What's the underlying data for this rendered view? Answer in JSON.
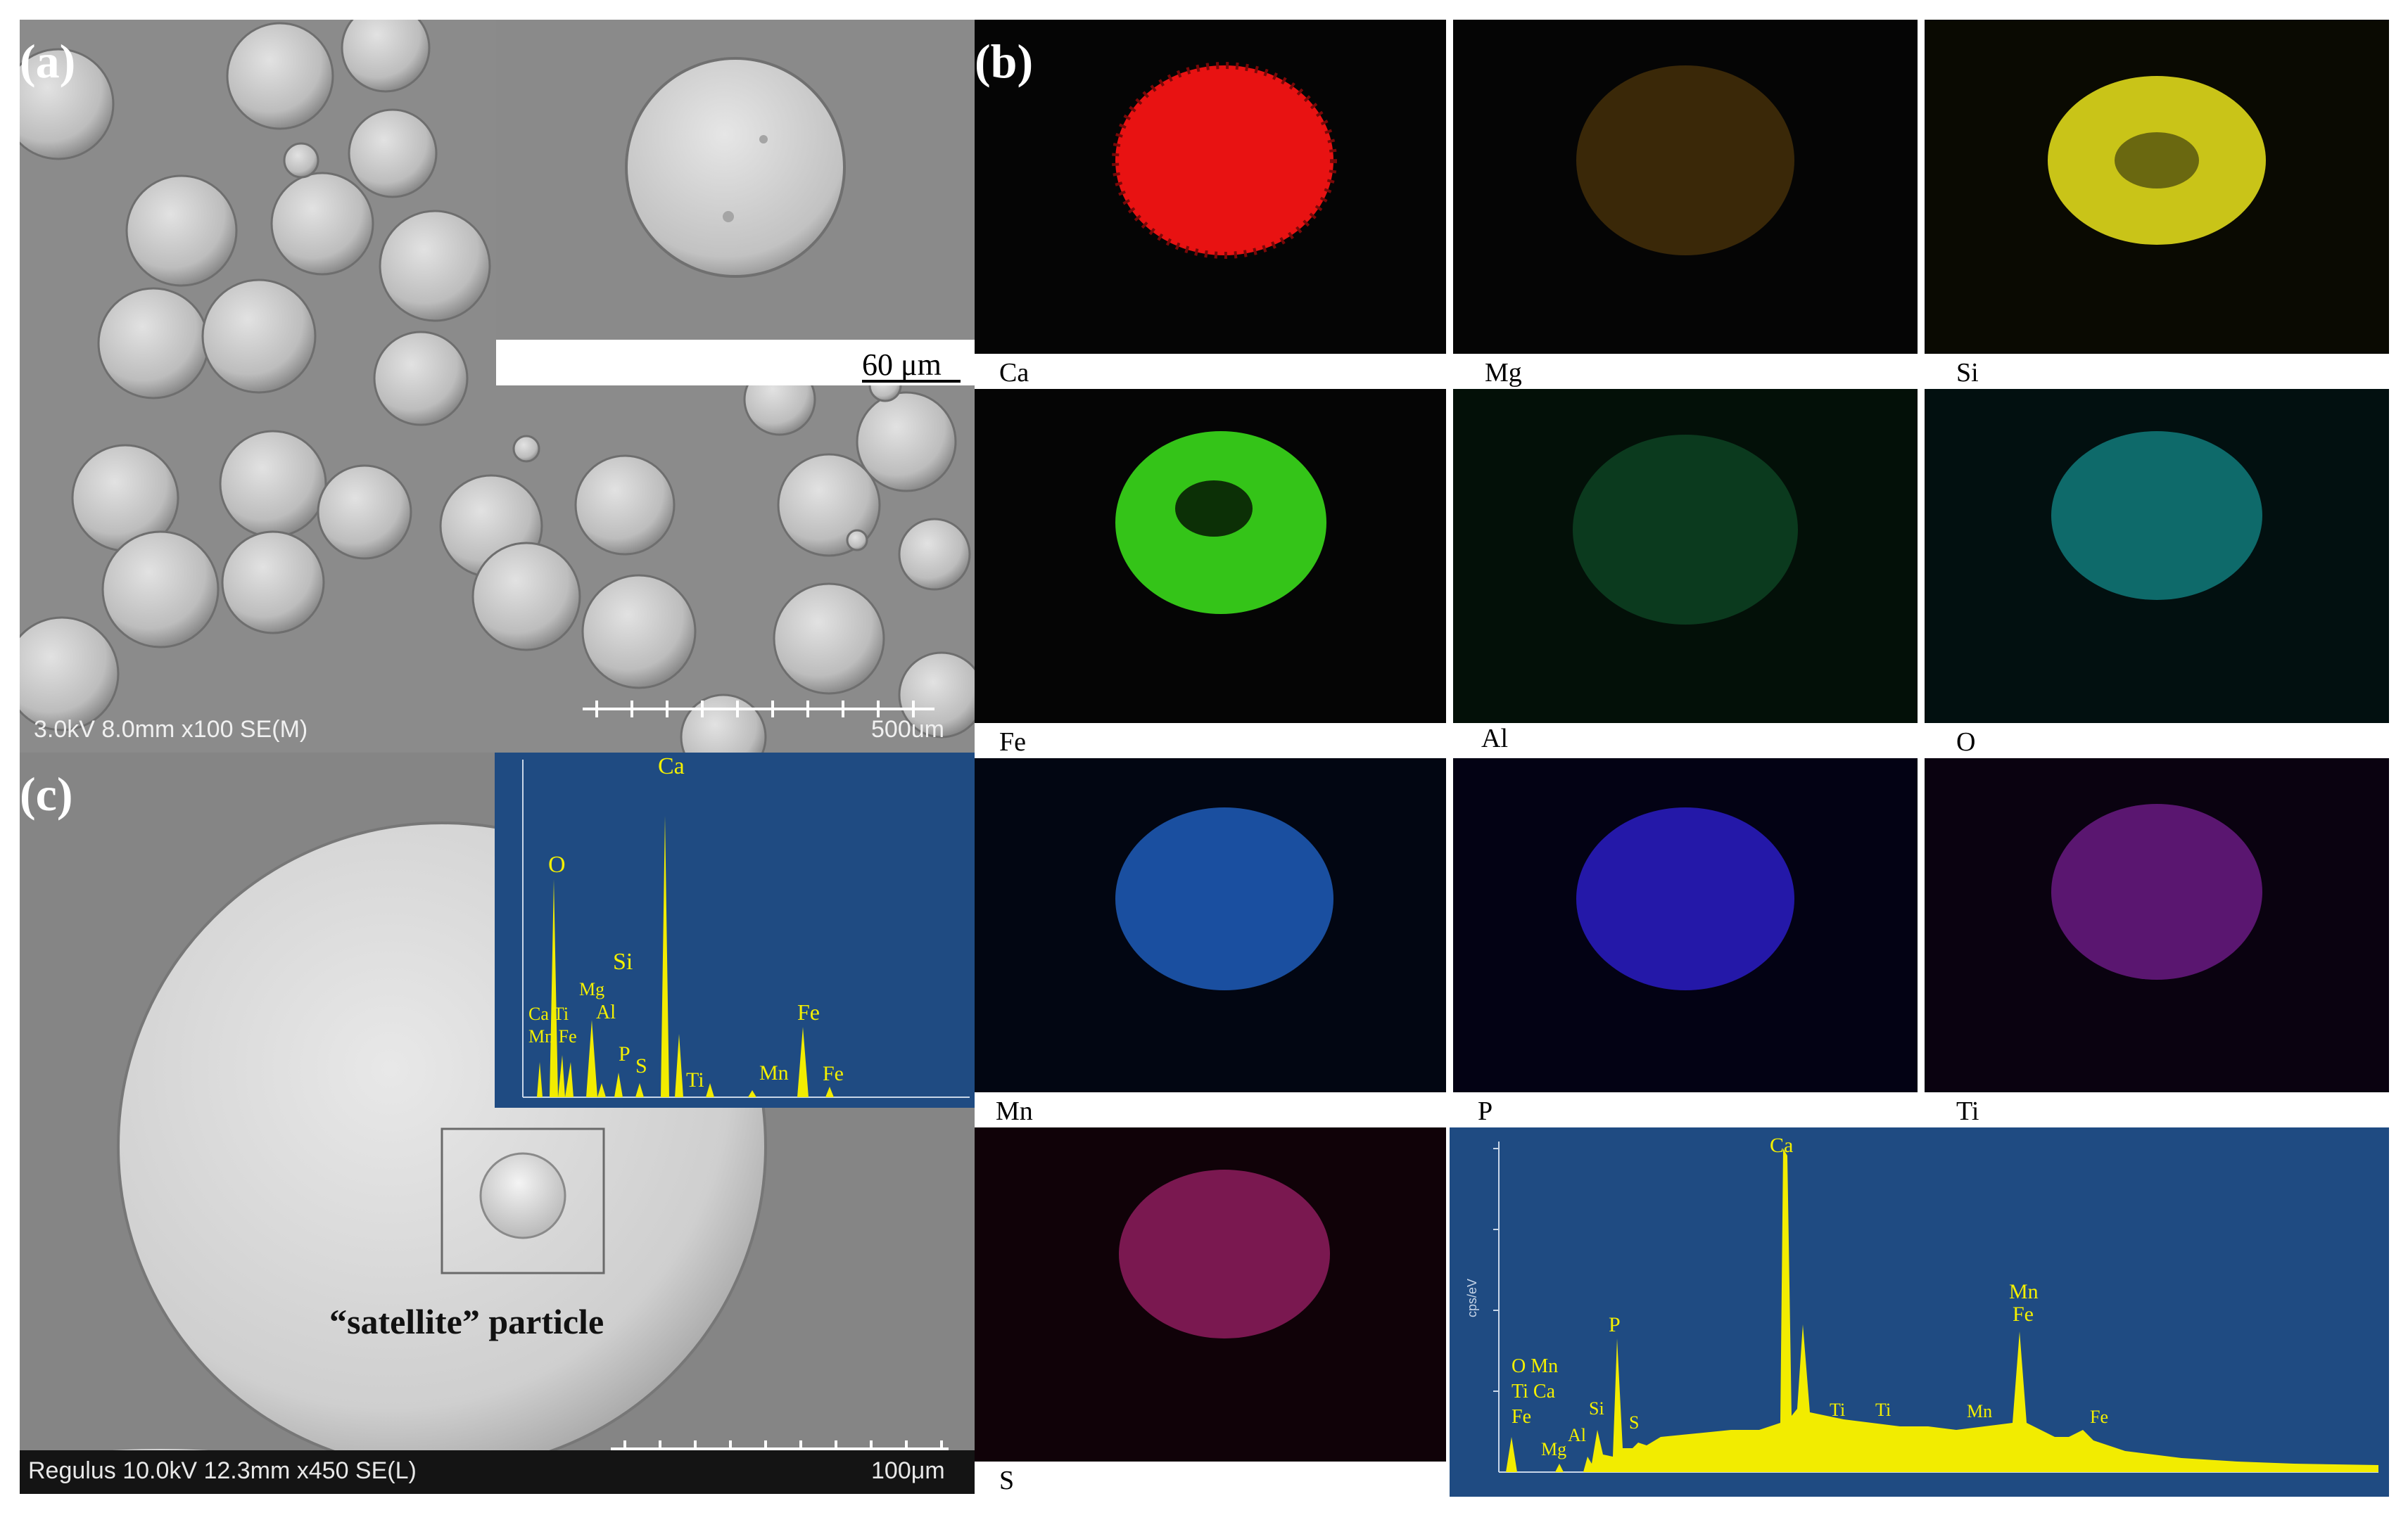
{
  "panels": {
    "a": {
      "letter": "(a)",
      "info": "3.0kV 8.0mm x100 SE(M)",
      "scale": "500um",
      "inset_scale": "60 μm"
    },
    "b": {
      "letter": "(b)"
    },
    "c": {
      "letter": "(c)",
      "info": "Regulus 10.0kV 12.3mm x450 SE(L)",
      "scale": "100μm",
      "annotation": "“satellite” particle"
    }
  },
  "maps": [
    {
      "element": "Ca",
      "color": "#ff1a1a"
    },
    {
      "element": "Mg",
      "color": "#b07a10"
    },
    {
      "element": "Si",
      "color": "#e4e21a"
    },
    {
      "element": "Fe",
      "color": "#3fe61c"
    },
    {
      "element": "Al",
      "color": "#1a9a4a"
    },
    {
      "element": "O",
      "color": "#1ab4b4"
    },
    {
      "element": "Mn",
      "color": "#2a7ae6"
    },
    {
      "element": "P",
      "color": "#3a2ae6"
    },
    {
      "element": "Ti",
      "color": "#9a2ab4"
    },
    {
      "element": "S",
      "color": "#d42a8a"
    }
  ],
  "spectrum_small": {
    "labels": [
      "Ca",
      "O",
      "Si",
      "Mg",
      "Ca Ti",
      "Mn Fe",
      "Al",
      "P",
      "S",
      "Ti",
      "Mn",
      "Fe",
      "Fe"
    ]
  },
  "spectrum_large": {
    "labels": [
      "Ca",
      "P",
      "Si",
      "Al",
      "Mg",
      "S",
      "Ti",
      "Ti",
      "Mn",
      "Mn",
      "Fe",
      "Fe",
      "O Mn",
      "Ti Ca",
      "Fe"
    ],
    "ylabel": "cps/eV"
  }
}
